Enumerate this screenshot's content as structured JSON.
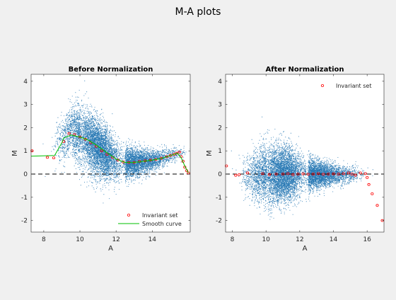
{
  "figure": {
    "title": "M-A plots",
    "background": "#f0f0f0"
  },
  "chart_data": [
    {
      "type": "scatter",
      "title": "Before Normalization",
      "xlabel": "A",
      "ylabel": "M",
      "xlim": [
        7.3,
        16.1
      ],
      "ylim": [
        -2.5,
        4.3
      ],
      "xticks": [
        8,
        10,
        12,
        14
      ],
      "yticks": [
        -2,
        -1,
        0,
        1,
        2,
        3,
        4
      ],
      "grid": false,
      "legend_position": "bottom-right",
      "point_color": "#2a7ab5",
      "reference_line": {
        "y": 0,
        "style": "dashed",
        "color": "#000000"
      },
      "cloud": {
        "n_points": 9000,
        "mean_trend": [
          [
            8.9,
            1.35
          ],
          [
            9.5,
            1.85
          ],
          [
            10.0,
            1.7
          ],
          [
            10.5,
            1.45
          ],
          [
            11.0,
            1.15
          ],
          [
            11.5,
            0.85
          ],
          [
            12.0,
            0.6
          ],
          [
            12.5,
            0.5
          ],
          [
            13.0,
            0.5
          ],
          [
            13.5,
            0.55
          ],
          [
            14.0,
            0.6
          ],
          [
            14.5,
            0.7
          ],
          [
            15.0,
            0.8
          ],
          [
            15.5,
            0.9
          ]
        ],
        "a_peak": 11.0,
        "spread_sd": [
          [
            9.0,
            0.5
          ],
          [
            10.0,
            0.65
          ],
          [
            11.0,
            0.6
          ],
          [
            12.0,
            0.45
          ],
          [
            13.0,
            0.3
          ],
          [
            14.0,
            0.22
          ],
          [
            15.0,
            0.18
          ],
          [
            15.8,
            0.15
          ]
        ]
      },
      "series": [
        {
          "name": "Invariant set",
          "marker": "circle",
          "color": "#ff0000",
          "points": [
            [
              7.35,
              1.0
            ],
            [
              8.2,
              0.72
            ],
            [
              8.55,
              0.7
            ],
            [
              9.1,
              1.4
            ],
            [
              9.4,
              1.75
            ],
            [
              9.7,
              1.7
            ],
            [
              10.0,
              1.6
            ],
            [
              10.3,
              1.5
            ],
            [
              10.6,
              1.35
            ],
            [
              10.9,
              1.2
            ],
            [
              11.2,
              1.0
            ],
            [
              11.5,
              0.85
            ],
            [
              11.8,
              0.72
            ],
            [
              12.1,
              0.6
            ],
            [
              12.4,
              0.52
            ],
            [
              12.7,
              0.5
            ],
            [
              13.0,
              0.5
            ],
            [
              13.3,
              0.55
            ],
            [
              13.6,
              0.57
            ],
            [
              13.9,
              0.6
            ],
            [
              14.2,
              0.63
            ],
            [
              14.5,
              0.68
            ],
            [
              14.8,
              0.75
            ],
            [
              15.0,
              0.8
            ],
            [
              15.2,
              0.85
            ],
            [
              15.35,
              0.9
            ],
            [
              15.5,
              0.95
            ],
            [
              15.6,
              0.75
            ],
            [
              15.7,
              0.55
            ],
            [
              15.8,
              0.3
            ],
            [
              15.9,
              0.15
            ],
            [
              16.0,
              0.05
            ]
          ]
        },
        {
          "name": "Smooth curve",
          "type": "line",
          "color": "#00c000",
          "points": [
            [
              7.3,
              0.77
            ],
            [
              8.6,
              0.8
            ],
            [
              9.0,
              1.35
            ],
            [
              9.1,
              1.55
            ],
            [
              9.5,
              1.68
            ],
            [
              10.0,
              1.6
            ],
            [
              10.5,
              1.45
            ],
            [
              11.0,
              1.2
            ],
            [
              11.5,
              0.92
            ],
            [
              12.0,
              0.65
            ],
            [
              12.5,
              0.5
            ],
            [
              13.0,
              0.5
            ],
            [
              13.5,
              0.55
            ],
            [
              14.0,
              0.6
            ],
            [
              14.5,
              0.67
            ],
            [
              15.0,
              0.8
            ],
            [
              15.4,
              0.9
            ],
            [
              15.6,
              0.7
            ],
            [
              15.8,
              0.35
            ],
            [
              16.0,
              0.05
            ]
          ]
        }
      ]
    },
    {
      "type": "scatter",
      "title": "After Normalization",
      "xlabel": "A",
      "ylabel": "M",
      "xlim": [
        7.6,
        17.0
      ],
      "ylim": [
        -2.5,
        4.3
      ],
      "xticks": [
        8,
        10,
        12,
        14,
        16
      ],
      "yticks": [
        -2,
        -1,
        0,
        1,
        2,
        3,
        4
      ],
      "grid": false,
      "legend_position": "top-right",
      "point_color": "#2a7ab5",
      "reference_line": {
        "y": 0,
        "style": "dashed",
        "color": "#000000"
      },
      "cloud": {
        "n_points": 9000,
        "mean_trend": [
          [
            8.9,
            0.0
          ],
          [
            16.5,
            0.0
          ]
        ],
        "a_peak": 11.0,
        "spread_sd": [
          [
            9.0,
            0.5
          ],
          [
            10.0,
            0.65
          ],
          [
            11.0,
            0.6
          ],
          [
            12.0,
            0.45
          ],
          [
            13.0,
            0.3
          ],
          [
            14.0,
            0.22
          ],
          [
            15.0,
            0.18
          ],
          [
            16.0,
            0.15
          ]
        ]
      },
      "series": [
        {
          "name": "Invariant set",
          "marker": "circle",
          "color": "#ff0000",
          "points": [
            [
              7.65,
              0.35
            ],
            [
              8.2,
              -0.05
            ],
            [
              8.4,
              -0.03
            ],
            [
              8.9,
              0.05
            ],
            [
              9.8,
              0.02
            ],
            [
              10.2,
              -0.02
            ],
            [
              10.6,
              0.0
            ],
            [
              11.0,
              0.0
            ],
            [
              11.3,
              0.02
            ],
            [
              11.6,
              -0.02
            ],
            [
              11.9,
              0.0
            ],
            [
              12.2,
              0.01
            ],
            [
              12.5,
              -0.01
            ],
            [
              12.8,
              0.0
            ],
            [
              13.1,
              0.02
            ],
            [
              13.4,
              -0.01
            ],
            [
              13.7,
              0.0
            ],
            [
              14.0,
              0.01
            ],
            [
              14.3,
              0.0
            ],
            [
              14.6,
              0.02
            ],
            [
              14.9,
              0.05
            ],
            [
              15.1,
              0.0
            ],
            [
              15.3,
              -0.05
            ],
            [
              15.6,
              0.05
            ],
            [
              15.9,
              0.02
            ],
            [
              16.0,
              -0.15
            ],
            [
              16.1,
              -0.45
            ],
            [
              16.3,
              -0.85
            ],
            [
              16.6,
              -1.35
            ],
            [
              16.9,
              -2.0
            ]
          ]
        }
      ]
    }
  ]
}
